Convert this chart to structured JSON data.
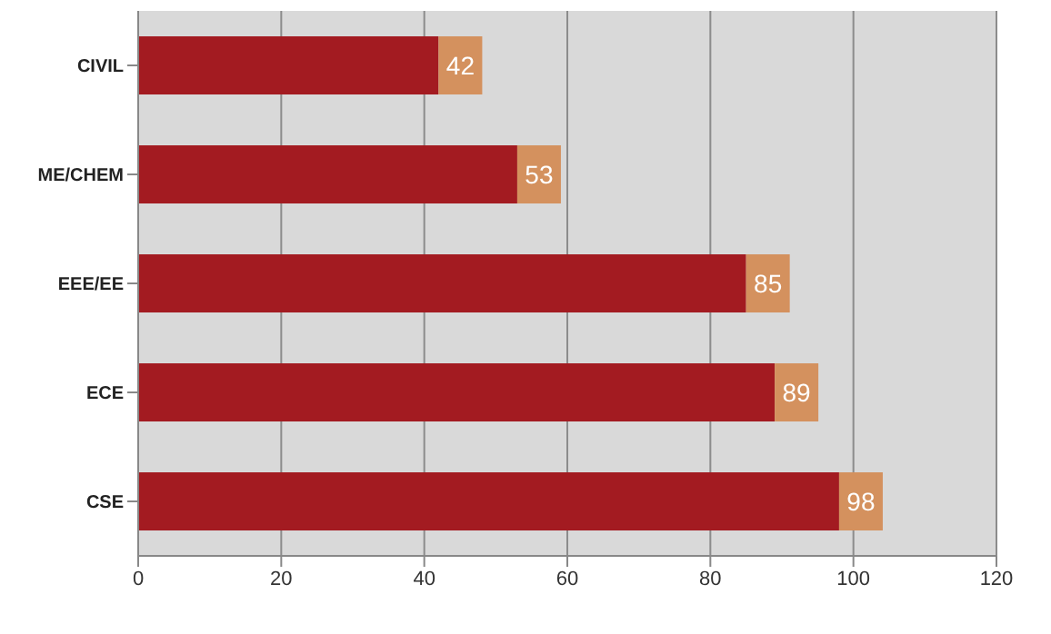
{
  "chart_data": {
    "type": "bar",
    "orientation": "horizontal",
    "categories": [
      "CIVIL",
      "ME/CHEM",
      "EEE/EE",
      "ECE",
      "CSE"
    ],
    "values": [
      42,
      53,
      85,
      89,
      98
    ],
    "color": "#a31b21",
    "xlim": [
      0,
      120
    ],
    "xticks": [
      0,
      20,
      40,
      60,
      80,
      100,
      120
    ],
    "grid": "x",
    "data_labels": true
  }
}
